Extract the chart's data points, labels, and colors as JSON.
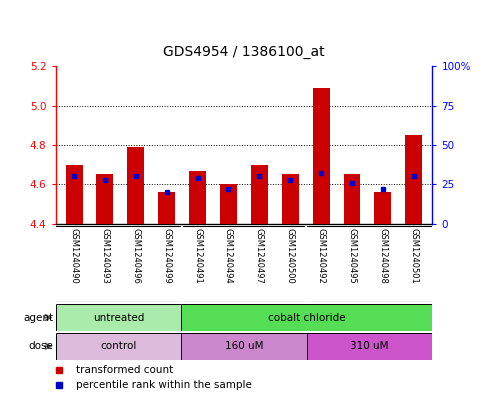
{
  "title": "GDS4954 / 1386100_at",
  "samples": [
    "GSM1240490",
    "GSM1240493",
    "GSM1240496",
    "GSM1240499",
    "GSM1240491",
    "GSM1240494",
    "GSM1240497",
    "GSM1240500",
    "GSM1240492",
    "GSM1240495",
    "GSM1240498",
    "GSM1240501"
  ],
  "transformed_count": [
    4.7,
    4.65,
    4.79,
    4.56,
    4.67,
    4.6,
    4.7,
    4.65,
    5.09,
    4.65,
    4.56,
    4.85
  ],
  "percentile_rank": [
    30,
    28,
    30,
    20,
    29,
    22,
    30,
    28,
    32,
    26,
    22,
    30
  ],
  "ymin": 4.4,
  "ymax": 5.2,
  "yticks": [
    4.4,
    4.6,
    4.8,
    5.0,
    5.2
  ],
  "right_yticks": [
    0,
    25,
    50,
    75,
    100
  ],
  "bar_color": "#cc0000",
  "marker_color": "#0000cc",
  "sample_bg_color": "#c8c8c8",
  "plot_bg": "#ffffff",
  "agent_groups": [
    {
      "label": "untreated",
      "start": 0,
      "end": 4,
      "color": "#aaeaaa"
    },
    {
      "label": "cobalt chloride",
      "start": 4,
      "end": 12,
      "color": "#55dd55"
    }
  ],
  "dose_groups": [
    {
      "label": "control",
      "start": 0,
      "end": 4,
      "color": "#ddbbdd"
    },
    {
      "label": "160 uM",
      "start": 4,
      "end": 8,
      "color": "#cc88cc"
    },
    {
      "label": "310 uM",
      "start": 8,
      "end": 12,
      "color": "#cc55cc"
    }
  ],
  "legend_items": [
    {
      "label": "transformed count",
      "color": "#cc0000"
    },
    {
      "label": "percentile rank within the sample",
      "color": "#0000cc"
    }
  ],
  "figsize": [
    4.83,
    3.93
  ],
  "dpi": 100
}
